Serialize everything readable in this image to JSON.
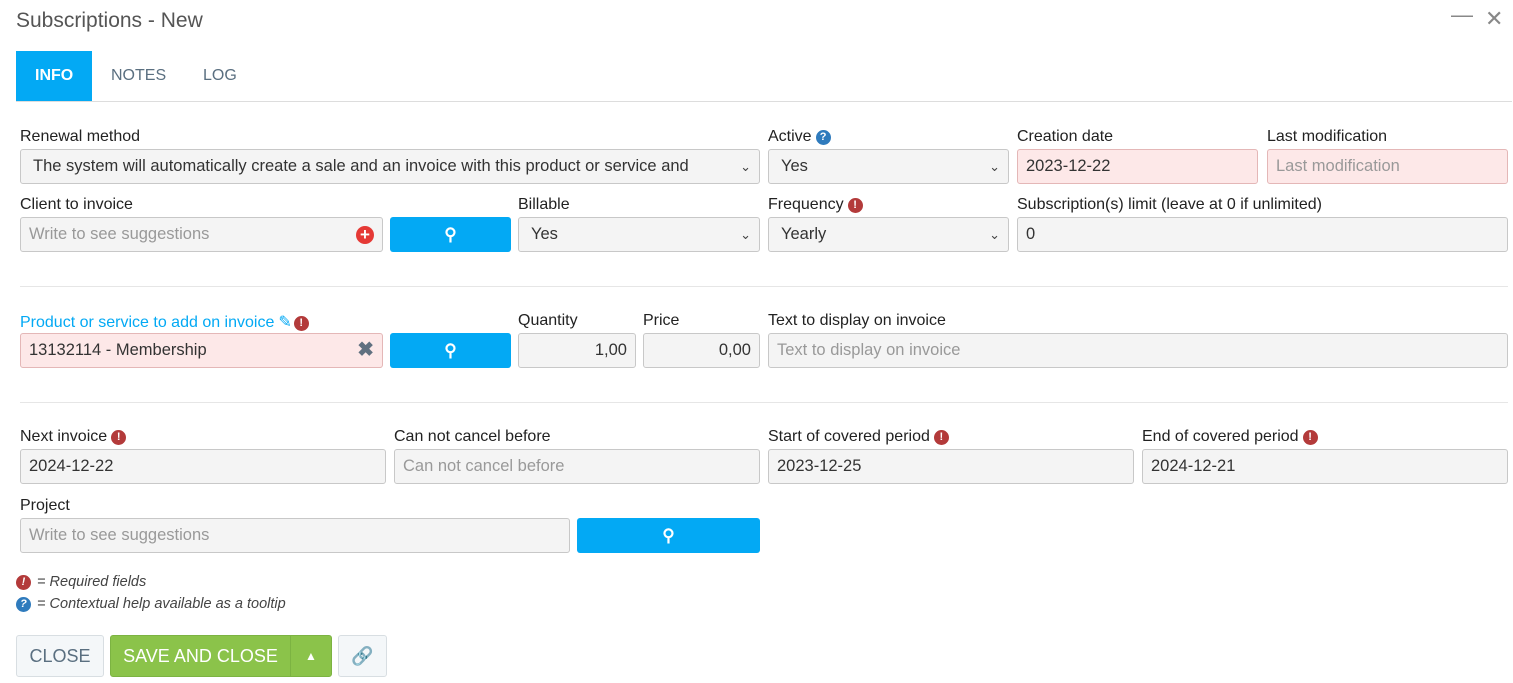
{
  "window": {
    "title": "Subscriptions - New"
  },
  "tabs": [
    {
      "label": "INFO",
      "active": true
    },
    {
      "label": "NOTES"
    },
    {
      "label": "LOG"
    }
  ],
  "fields": {
    "renewal_method": {
      "label": "Renewal method",
      "value": "The system will automatically create a sale and an invoice with this product or service and"
    },
    "active": {
      "label": "Active",
      "value": "Yes"
    },
    "creation_date": {
      "label": "Creation date",
      "value": "2023-12-22"
    },
    "last_modification": {
      "label": "Last modification",
      "placeholder": "Last modification"
    },
    "client": {
      "label": "Client to invoice",
      "placeholder": "Write to see suggestions"
    },
    "billable": {
      "label": "Billable",
      "value": "Yes"
    },
    "frequency": {
      "label": "Frequency",
      "value": "Yearly"
    },
    "limit": {
      "label": "Subscription(s) limit (leave at 0 if unlimited)",
      "value": "0"
    },
    "product": {
      "label": "Product or service to add on invoice",
      "value": "13132114 - Membership"
    },
    "quantity": {
      "label": "Quantity",
      "value": "1,00"
    },
    "price": {
      "label": "Price",
      "value": "0,00"
    },
    "invoice_text": {
      "label": "Text to display on invoice",
      "placeholder": "Text to display on invoice"
    },
    "next_invoice": {
      "label": "Next invoice",
      "value": "2024-12-22"
    },
    "cannot_cancel": {
      "label": "Can not cancel before",
      "placeholder": "Can not cancel before"
    },
    "start_period": {
      "label": "Start of covered period",
      "value": "2023-12-25"
    },
    "end_period": {
      "label": "End of covered period",
      "value": "2024-12-21"
    },
    "project": {
      "label": "Project",
      "placeholder": "Write to see suggestions"
    }
  },
  "legend": {
    "required": "= Required fields",
    "help": "= Contextual help available as a tooltip"
  },
  "buttons": {
    "close": "CLOSE",
    "save_close": "SAVE AND CLOSE"
  },
  "colors": {
    "accent": "#03a9f4",
    "save": "#8bc34a",
    "required": "#b33a3a",
    "help": "#2f7bbd",
    "error_bg": "#fde8e8"
  }
}
